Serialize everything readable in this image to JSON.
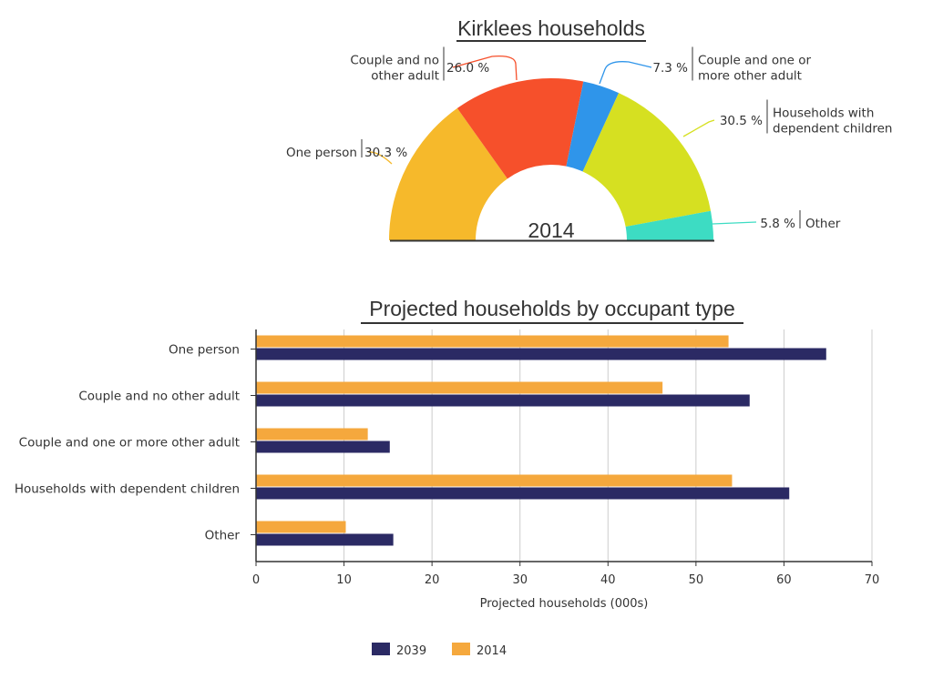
{
  "chart_data": [
    {
      "type": "pie",
      "variant": "semi-donut",
      "title": "Kirklees households",
      "center_label": "2014",
      "slices": [
        {
          "label": "One person",
          "label_lines": [
            "One person"
          ],
          "value": 30.3,
          "value_label": "30.3 %",
          "color": "#F6B92B"
        },
        {
          "label": "Couple and no other adult",
          "label_lines": [
            "Couple and no",
            "other adult"
          ],
          "value": 26.0,
          "value_label": "26.0 %",
          "color": "#F6502B"
        },
        {
          "label": "Couple and one or more other adult",
          "label_lines": [
            "Couple and one or",
            "more other adult"
          ],
          "value": 7.3,
          "value_label": "7.3 %",
          "color": "#2F95EA"
        },
        {
          "label": "Households with dependent children",
          "label_lines": [
            "Households with",
            "dependent children"
          ],
          "value": 30.5,
          "value_label": "30.5 %",
          "color": "#D6E021"
        },
        {
          "label": "Other",
          "label_lines": [
            "Other"
          ],
          "value": 5.8,
          "value_label": "5.8 %",
          "color": "#3DDCC3"
        }
      ]
    },
    {
      "type": "bar",
      "orientation": "horizontal",
      "title": "Projected households by occupant type",
      "xlabel": "Projected households (000s)",
      "ylabel": "",
      "xlim": [
        0,
        70
      ],
      "xticks": [
        "0",
        "10",
        "20",
        "30",
        "40",
        "50",
        "60",
        "70"
      ],
      "grid": true,
      "legend": "bottom",
      "categories": [
        "One person",
        "Couple and no other adult",
        "Couple and one or more other adult",
        "Households with dependent children",
        "Other"
      ],
      "series": [
        {
          "name": "2014",
          "color": "#F5A83D",
          "values": [
            53.7,
            46.2,
            12.7,
            54.1,
            10.2
          ]
        },
        {
          "name": "2039",
          "color": "#2B2A64",
          "values": [
            64.8,
            56.1,
            15.2,
            60.6,
            15.6
          ]
        }
      ],
      "legend_order": [
        "2039",
        "2014"
      ]
    }
  ]
}
